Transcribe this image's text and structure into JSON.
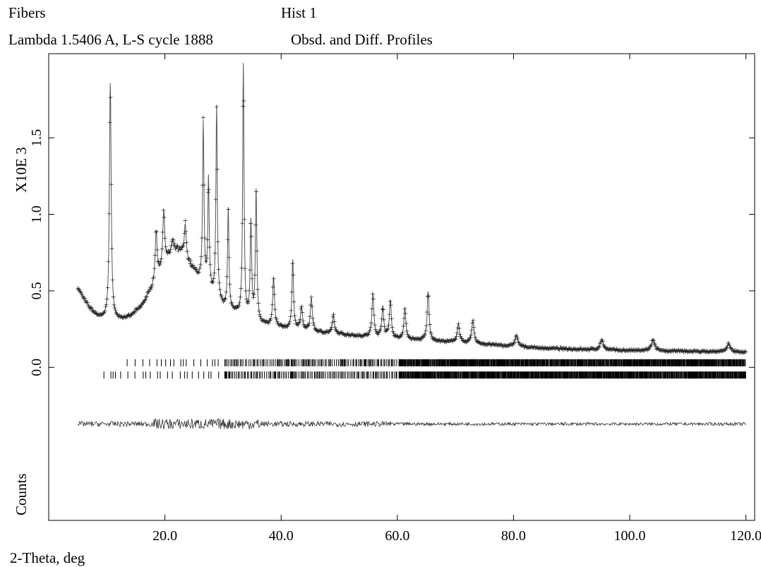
{
  "header": {
    "phase_name": "Fibers",
    "histogram": "Hist  1",
    "conditions": "Lambda 1.5406 A, L-S cycle 1888",
    "plot_kind": "Obsd. and Diff. Profiles"
  },
  "chart_data": {
    "type": "scatter",
    "xlabel": "2-Theta, deg",
    "ylabel_scale": "X10E  3",
    "ylabel": "Counts",
    "xlim": [
      0,
      121.5
    ],
    "ylim": [
      -1.0,
      2.05
    ],
    "x_ticks": [
      20,
      40,
      60,
      80,
      100,
      120
    ],
    "x_tick_labels": [
      "20.0",
      "40.0",
      "60.0",
      "80.0",
      "100.0",
      "120.0"
    ],
    "y_ticks": [
      0.0,
      0.5,
      1.0,
      1.5
    ],
    "y_tick_labels": [
      "0.0",
      "0.5",
      "1.0",
      "1.5"
    ],
    "x_range": [
      5,
      120
    ],
    "background": [
      [
        5,
        0.52
      ],
      [
        6,
        0.45
      ],
      [
        7,
        0.39
      ],
      [
        8,
        0.35
      ],
      [
        9,
        0.32
      ],
      [
        10,
        0.31
      ],
      [
        11,
        0.305
      ],
      [
        12,
        0.31
      ],
      [
        14,
        0.33
      ],
      [
        16,
        0.4
      ],
      [
        18,
        0.53
      ],
      [
        20,
        0.68
      ],
      [
        22,
        0.76
      ],
      [
        23,
        0.74
      ],
      [
        25,
        0.63
      ],
      [
        27,
        0.52
      ],
      [
        30,
        0.4
      ],
      [
        34,
        0.31
      ],
      [
        38,
        0.27
      ],
      [
        45,
        0.235
      ],
      [
        55,
        0.2
      ],
      [
        65,
        0.175
      ],
      [
        75,
        0.15
      ],
      [
        85,
        0.125
      ],
      [
        100,
        0.11
      ],
      [
        120,
        0.1
      ]
    ],
    "peaks": [
      {
        "x": 10.6,
        "height": 1.55,
        "width": 0.18
      },
      {
        "x": 18.5,
        "height": 0.32,
        "width": 0.2
      },
      {
        "x": 19.8,
        "height": 0.35,
        "width": 0.2
      },
      {
        "x": 21.3,
        "height": 0.08,
        "width": 0.3
      },
      {
        "x": 23.5,
        "height": 0.22,
        "width": 0.2
      },
      {
        "x": 26.6,
        "height": 1.05,
        "width": 0.14
      },
      {
        "x": 27.5,
        "height": 0.72,
        "width": 0.14
      },
      {
        "x": 28.9,
        "height": 1.25,
        "width": 0.14
      },
      {
        "x": 30.9,
        "height": 0.65,
        "width": 0.14
      },
      {
        "x": 33.5,
        "height": 1.65,
        "width": 0.14
      },
      {
        "x": 34.8,
        "height": 0.63,
        "width": 0.15
      },
      {
        "x": 35.7,
        "height": 0.85,
        "width": 0.15
      },
      {
        "x": 38.7,
        "height": 0.32,
        "width": 0.18
      },
      {
        "x": 42.0,
        "height": 0.45,
        "width": 0.16
      },
      {
        "x": 43.5,
        "height": 0.15,
        "width": 0.2
      },
      {
        "x": 45.2,
        "height": 0.22,
        "width": 0.2
      },
      {
        "x": 49.0,
        "height": 0.12,
        "width": 0.2
      },
      {
        "x": 55.8,
        "height": 0.28,
        "width": 0.2
      },
      {
        "x": 57.5,
        "height": 0.2,
        "width": 0.2
      },
      {
        "x": 58.8,
        "height": 0.24,
        "width": 0.2
      },
      {
        "x": 61.3,
        "height": 0.2,
        "width": 0.2
      },
      {
        "x": 65.3,
        "height": 0.32,
        "width": 0.2
      },
      {
        "x": 70.5,
        "height": 0.12,
        "width": 0.25
      },
      {
        "x": 73.0,
        "height": 0.15,
        "width": 0.25
      },
      {
        "x": 80.5,
        "height": 0.07,
        "width": 0.3
      },
      {
        "x": 95.2,
        "height": 0.07,
        "width": 0.3
      },
      {
        "x": 104.0,
        "height": 0.07,
        "width": 0.35
      },
      {
        "x": 117.0,
        "height": 0.05,
        "width": 0.35
      }
    ],
    "tick_rows": [
      {
        "y": 0.03,
        "x_start": 13.5,
        "x_end": 120
      },
      {
        "y": -0.05,
        "x_start": 9.5,
        "x_end": 120
      }
    ],
    "difference_curve": {
      "offset": -0.37,
      "x_start": 5,
      "x_end": 120
    }
  }
}
